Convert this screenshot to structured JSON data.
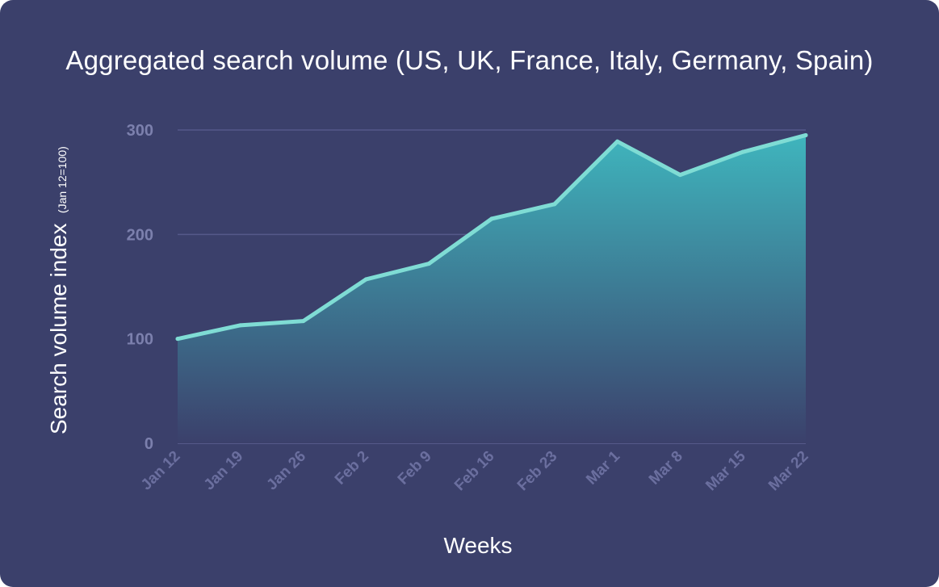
{
  "chart_data": {
    "type": "area",
    "title": "Aggregated search volume (US, UK, France, Italy, Germany, Spain)",
    "xlabel": "Weeks",
    "ylabel": "Search volume index",
    "ylabel_note": "(Jan 12=100)",
    "categories": [
      "Jan 12",
      "Jan 19",
      "Jan 26",
      "Feb 2",
      "Feb 9",
      "Feb 16",
      "Feb 23",
      "Mar 1",
      "Mar 8",
      "Mar 15",
      "Mar 22"
    ],
    "values": [
      100,
      113,
      117,
      157,
      172,
      215,
      229,
      289,
      257,
      279,
      295
    ],
    "ylim": [
      0,
      300
    ],
    "yticks": [
      0,
      100,
      200,
      300
    ],
    "grid": true,
    "colors": {
      "background": "#3b406b",
      "line": "#7fdcd4",
      "fill_top": "#3fb5bd",
      "fill_bottom": "#3b406b",
      "grid": "#55598a",
      "tick_label": "#7c80ad"
    }
  }
}
